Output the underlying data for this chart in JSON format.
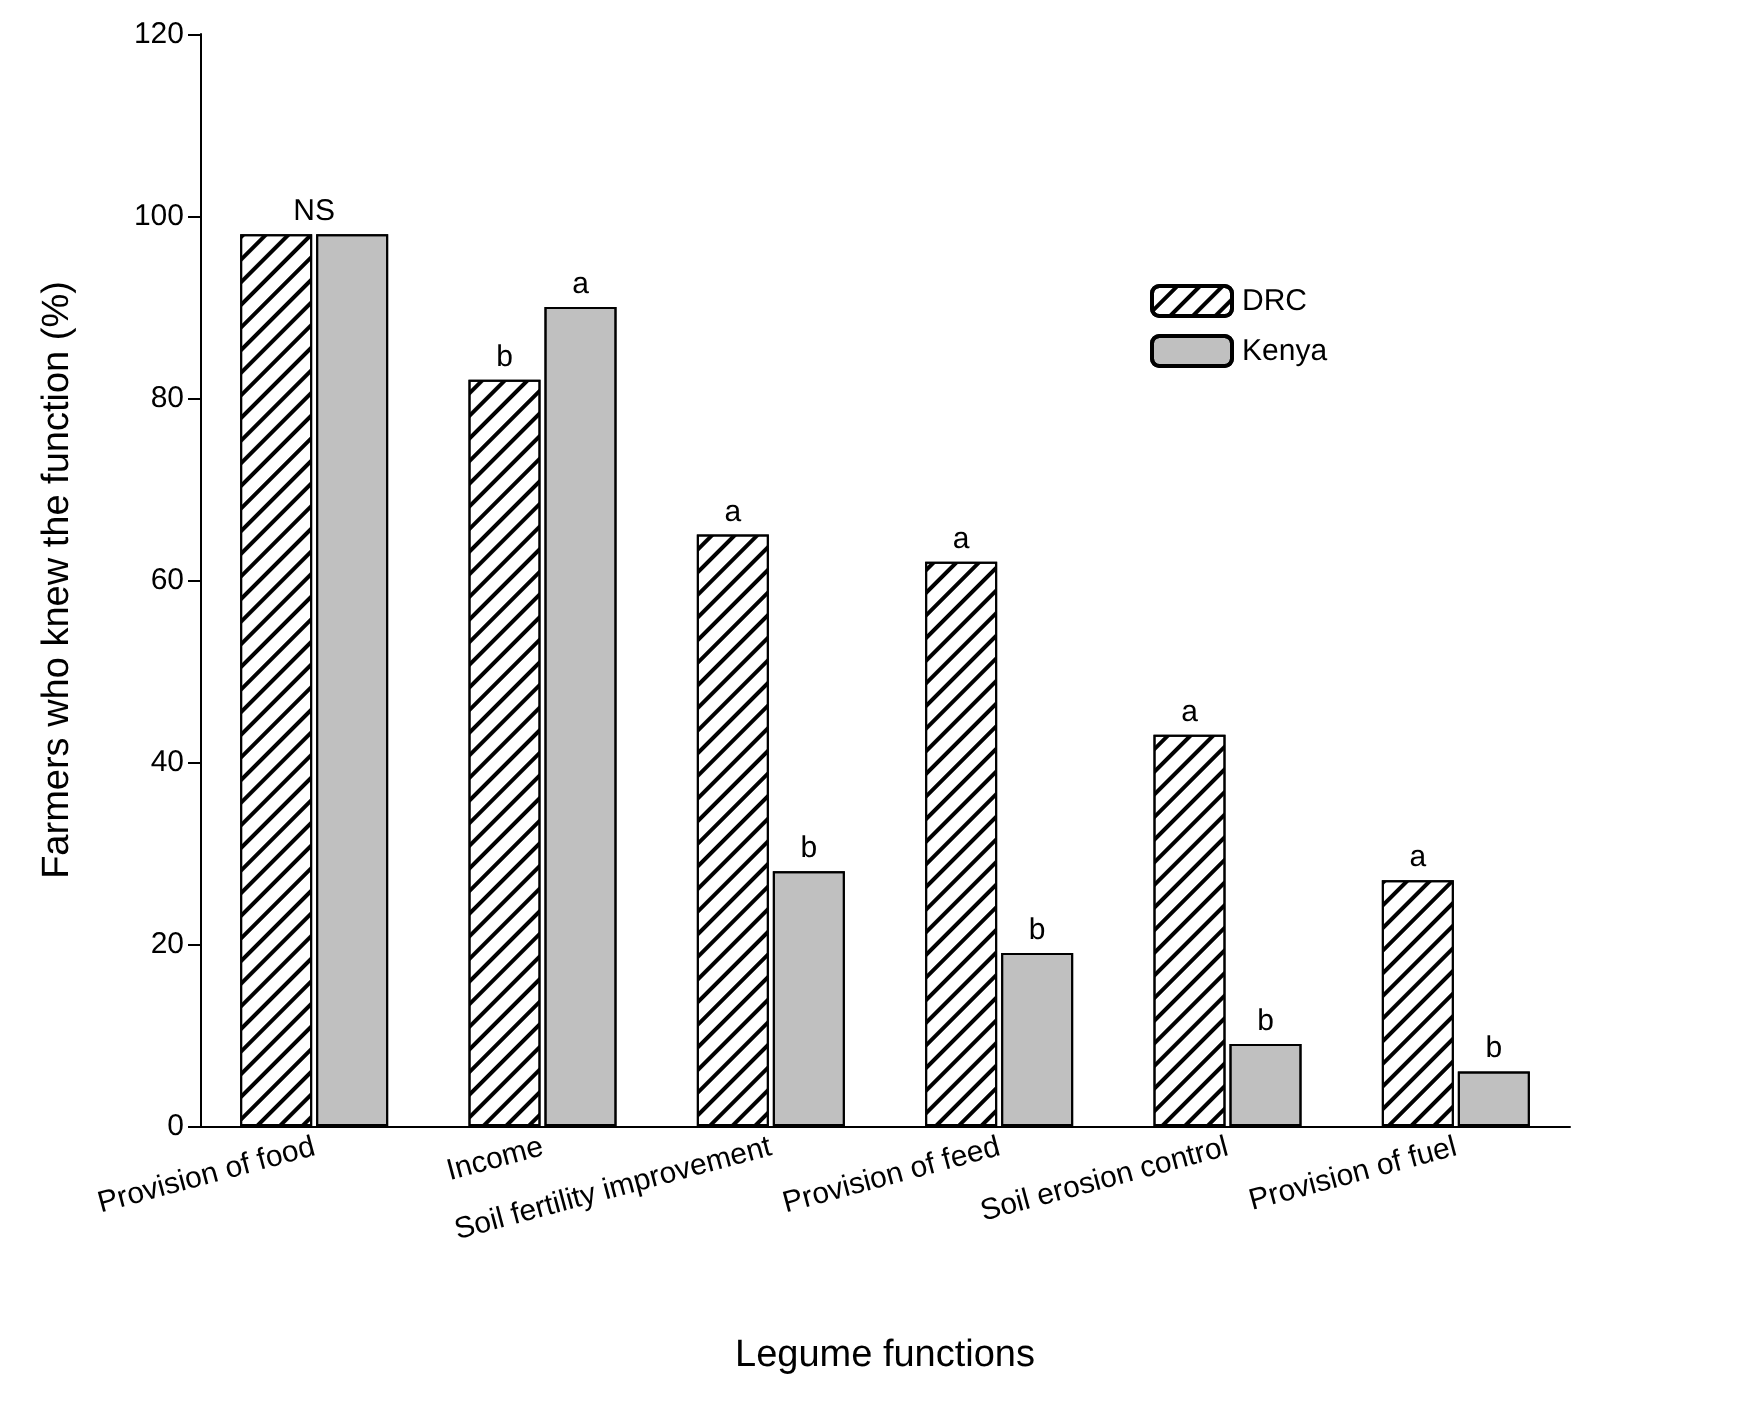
{
  "chart_data": {
    "type": "bar",
    "xlabel": "Legume functions",
    "ylabel": "Farmers who knew the function (%)",
    "categories": [
      "Provision of food",
      "Income",
      "Soil fertility improvement",
      "Provision of feed",
      "Soil erosion control",
      "Provision of fuel"
    ],
    "series": [
      {
        "name": "DRC",
        "color": "#ffffff",
        "values": [
          98,
          82,
          65,
          62,
          43,
          27
        ]
      },
      {
        "name": "Kenya",
        "color": "#c0c0c0",
        "values": [
          98,
          90,
          28,
          19,
          9,
          6
        ]
      }
    ],
    "ylim": [
      0,
      120
    ],
    "yticks": [
      0,
      20,
      40,
      60,
      80,
      100,
      120
    ],
    "grid": false,
    "legend": "top right",
    "annotations": [
      {
        "text": "NS",
        "x": "Provision of food",
        "y": 98
      },
      {
        "text": "b",
        "x": "Income",
        "y": 82
      },
      {
        "text": "a",
        "x": "Income",
        "y": 90
      },
      {
        "text": "a",
        "x": "Soil fertility improvement",
        "y": 65
      },
      {
        "text": "b",
        "x": "Soil fertility improvement",
        "y": 28
      },
      {
        "text": "a",
        "x": "Provision of feed",
        "y": 62
      },
      {
        "text": "b",
        "x": "Provision of feed",
        "y": 19
      },
      {
        "text": "a",
        "x": "Soil erosion control",
        "y": 43
      },
      {
        "text": "b",
        "x": "Soil erosion control",
        "y": 9
      },
      {
        "text": "a",
        "x": "Provision of fuel",
        "y": 27
      },
      {
        "text": "b",
        "x": "Provision of fuel",
        "y": 6
      }
    ]
  }
}
